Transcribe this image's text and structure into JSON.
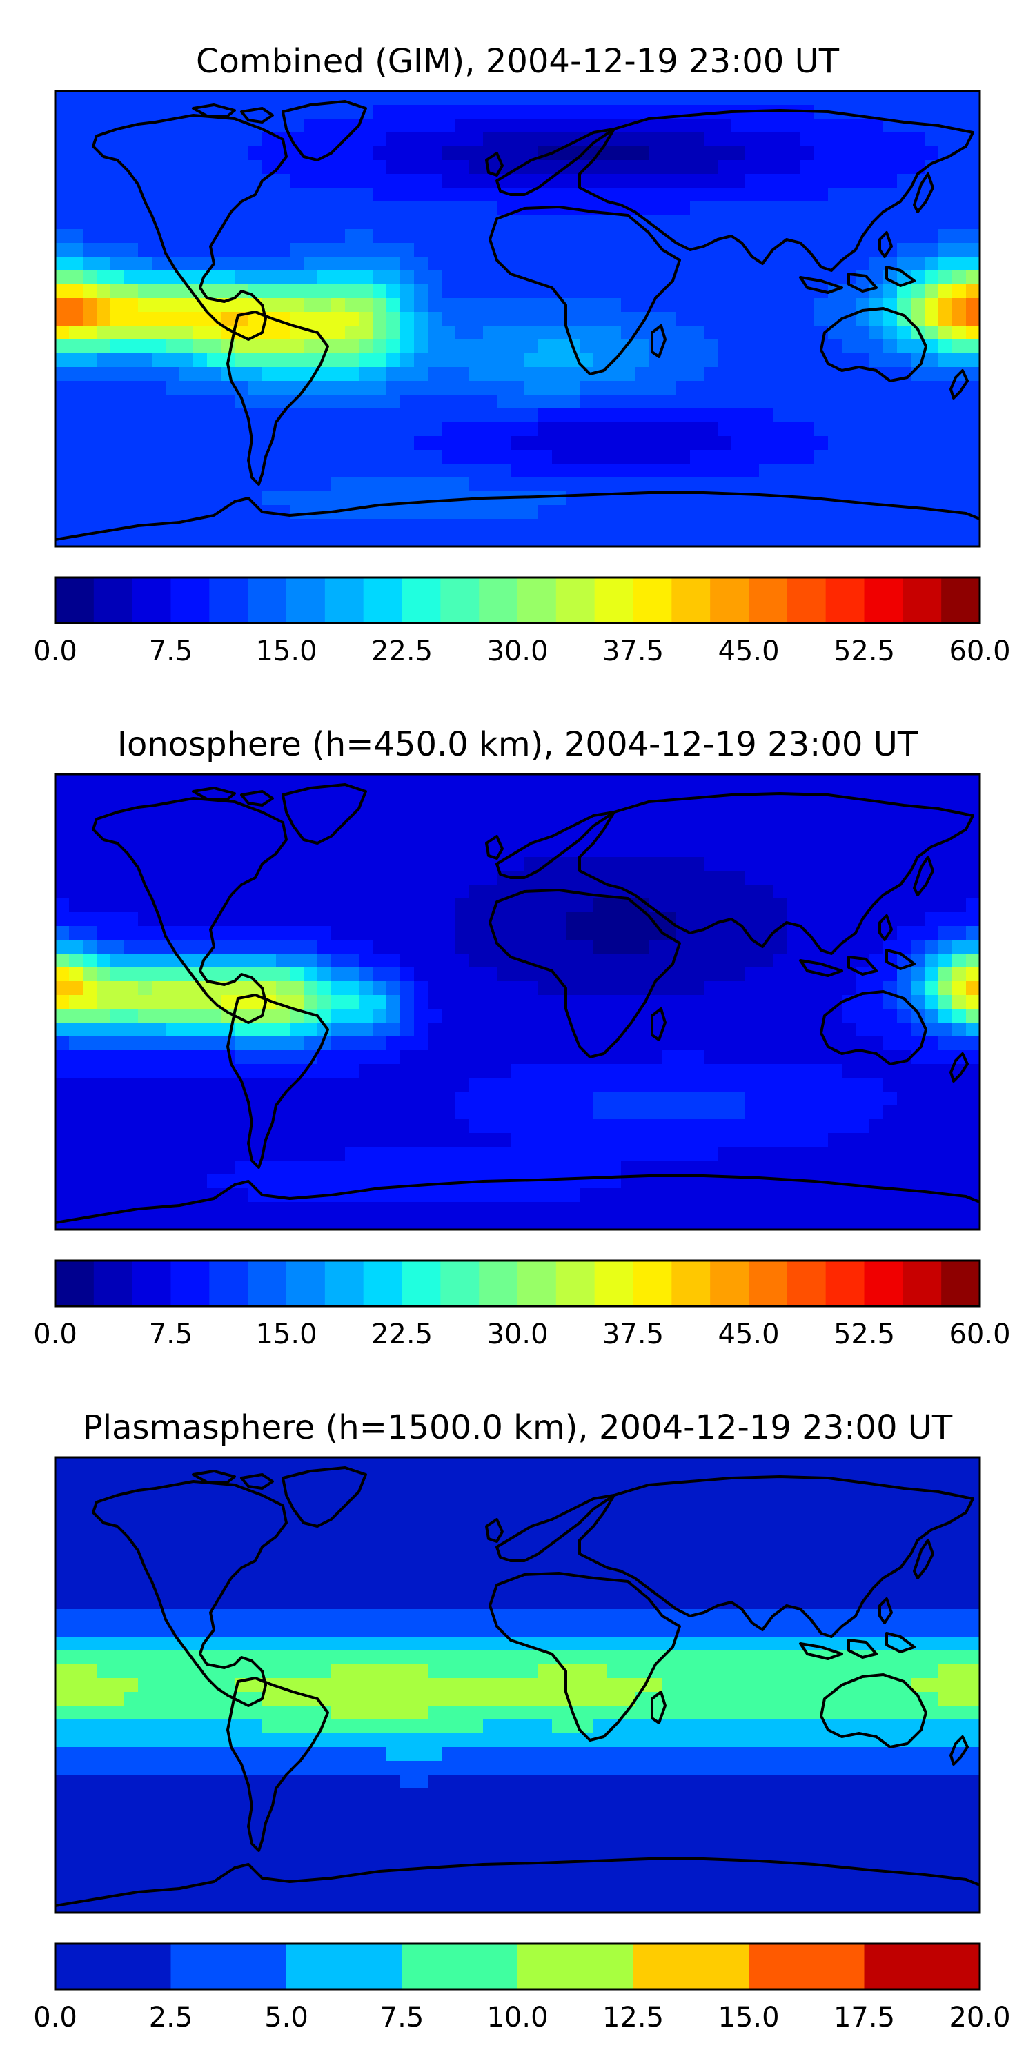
{
  "panels": [
    {
      "title": "Combined (GIM), 2004-12-19 23:00 UT",
      "colorbar": {
        "min": 0,
        "max": 60,
        "ticks": [
          "0.0",
          "7.5",
          "15.0",
          "22.5",
          "30.0",
          "37.5",
          "45.0",
          "52.5",
          "60.0"
        ],
        "colors": [
          "#00008f",
          "#0000b8",
          "#0000e0",
          "#0010ff",
          "#0038ff",
          "#0060ff",
          "#0088ff",
          "#00b0ff",
          "#00d8ff",
          "#20ffdf",
          "#48ffb7",
          "#70ff8f",
          "#98ff67",
          "#c0ff3f",
          "#e8ff17",
          "#ffee00",
          "#ffc800",
          "#ffa000",
          "#ff7800",
          "#ff5000",
          "#ff2800",
          "#f00000",
          "#c80000",
          "#8f0000"
        ]
      },
      "field": {
        "base": 11,
        "blobs": [
          {
            "lon": -150,
            "lat": 2,
            "amp": 24,
            "slon": 55,
            "slat": 14
          },
          {
            "lon": -95,
            "lat": -5,
            "amp": 20,
            "slon": 35,
            "slat": 18
          },
          {
            "lon": -60,
            "lat": 0,
            "amp": 14,
            "slon": 20,
            "slat": 22
          },
          {
            "lon": 175,
            "lat": 5,
            "amp": 20,
            "slon": 25,
            "slat": 18
          },
          {
            "lon": 15,
            "lat": -15,
            "amp": 7,
            "slon": 50,
            "slat": 18
          },
          {
            "lon": 30,
            "lat": 65,
            "amp": -9,
            "slon": 90,
            "slat": 15
          },
          {
            "lon": 40,
            "lat": -48,
            "amp": -6,
            "slon": 60,
            "slat": 12
          },
          {
            "lon": -40,
            "lat": -72,
            "amp": 4,
            "slon": 60,
            "slat": 8
          }
        ]
      }
    },
    {
      "title": "Ionosphere  (h=450.0 km), 2004-12-19 23:00 UT",
      "colorbar": {
        "min": 0,
        "max": 60,
        "ticks": [
          "0.0",
          "7.5",
          "15.0",
          "22.5",
          "30.0",
          "37.5",
          "45.0",
          "52.5",
          "60.0"
        ],
        "colors": [
          "#00008f",
          "#0000b8",
          "#0000e0",
          "#0010ff",
          "#0038ff",
          "#0060ff",
          "#0088ff",
          "#00b0ff",
          "#00d8ff",
          "#20ffdf",
          "#48ffb7",
          "#70ff8f",
          "#98ff67",
          "#c0ff3f",
          "#e8ff17",
          "#ffee00",
          "#ffc800",
          "#ffa000",
          "#ff7800",
          "#ff5000",
          "#ff2800",
          "#f00000",
          "#c80000",
          "#8f0000"
        ]
      },
      "field": {
        "base": 7,
        "blobs": [
          {
            "lon": -140,
            "lat": 2,
            "amp": 26,
            "slon": 50,
            "slat": 15
          },
          {
            "lon": -90,
            "lat": 0,
            "amp": 18,
            "slon": 28,
            "slat": 16
          },
          {
            "lon": -55,
            "lat": -2,
            "amp": 9,
            "slon": 14,
            "slat": 12
          },
          {
            "lon": 178,
            "lat": 8,
            "amp": 22,
            "slon": 20,
            "slat": 16
          },
          {
            "lon": 40,
            "lat": 30,
            "amp": -5,
            "slon": 70,
            "slat": 30
          },
          {
            "lon": 60,
            "lat": -40,
            "amp": 4,
            "slon": 60,
            "slat": 14
          },
          {
            "lon": -40,
            "lat": -70,
            "amp": 3,
            "slon": 60,
            "slat": 8
          }
        ]
      }
    },
    {
      "title": "Plasmasphere (h=1500.0 km), 2004-12-19 23:00 UT",
      "colorbar": {
        "min": 0,
        "max": 20,
        "ticks": [
          "0.0",
          "2.5",
          "5.0",
          "7.5",
          "10.0",
          "12.5",
          "15.0",
          "17.5",
          "20.0"
        ],
        "colors": [
          "#0018c8",
          "#0050ff",
          "#00c0ff",
          "#40ffa0",
          "#a8ff40",
          "#ffcc00",
          "#ff5a00",
          "#c00000"
        ]
      },
      "field": {
        "base": 1.2,
        "band": {
          "amp": 8.8,
          "lat": -2,
          "width": 24
        },
        "blobs": [
          {
            "lon": -55,
            "lat": -5,
            "amp": 2.0,
            "slon": 30,
            "slat": 15
          },
          {
            "lon": 22,
            "lat": 2,
            "amp": 1.8,
            "slon": 18,
            "slat": 12
          },
          {
            "lon": -170,
            "lat": 0,
            "amp": 1.2,
            "slon": 12,
            "slat": 8
          },
          {
            "lon": 178,
            "lat": 5,
            "amp": 1.6,
            "slon": 15,
            "slat": 10
          },
          {
            "lon": -40,
            "lat": -30,
            "amp": 1.4,
            "slon": 15,
            "slat": 8
          }
        ]
      }
    }
  ]
}
